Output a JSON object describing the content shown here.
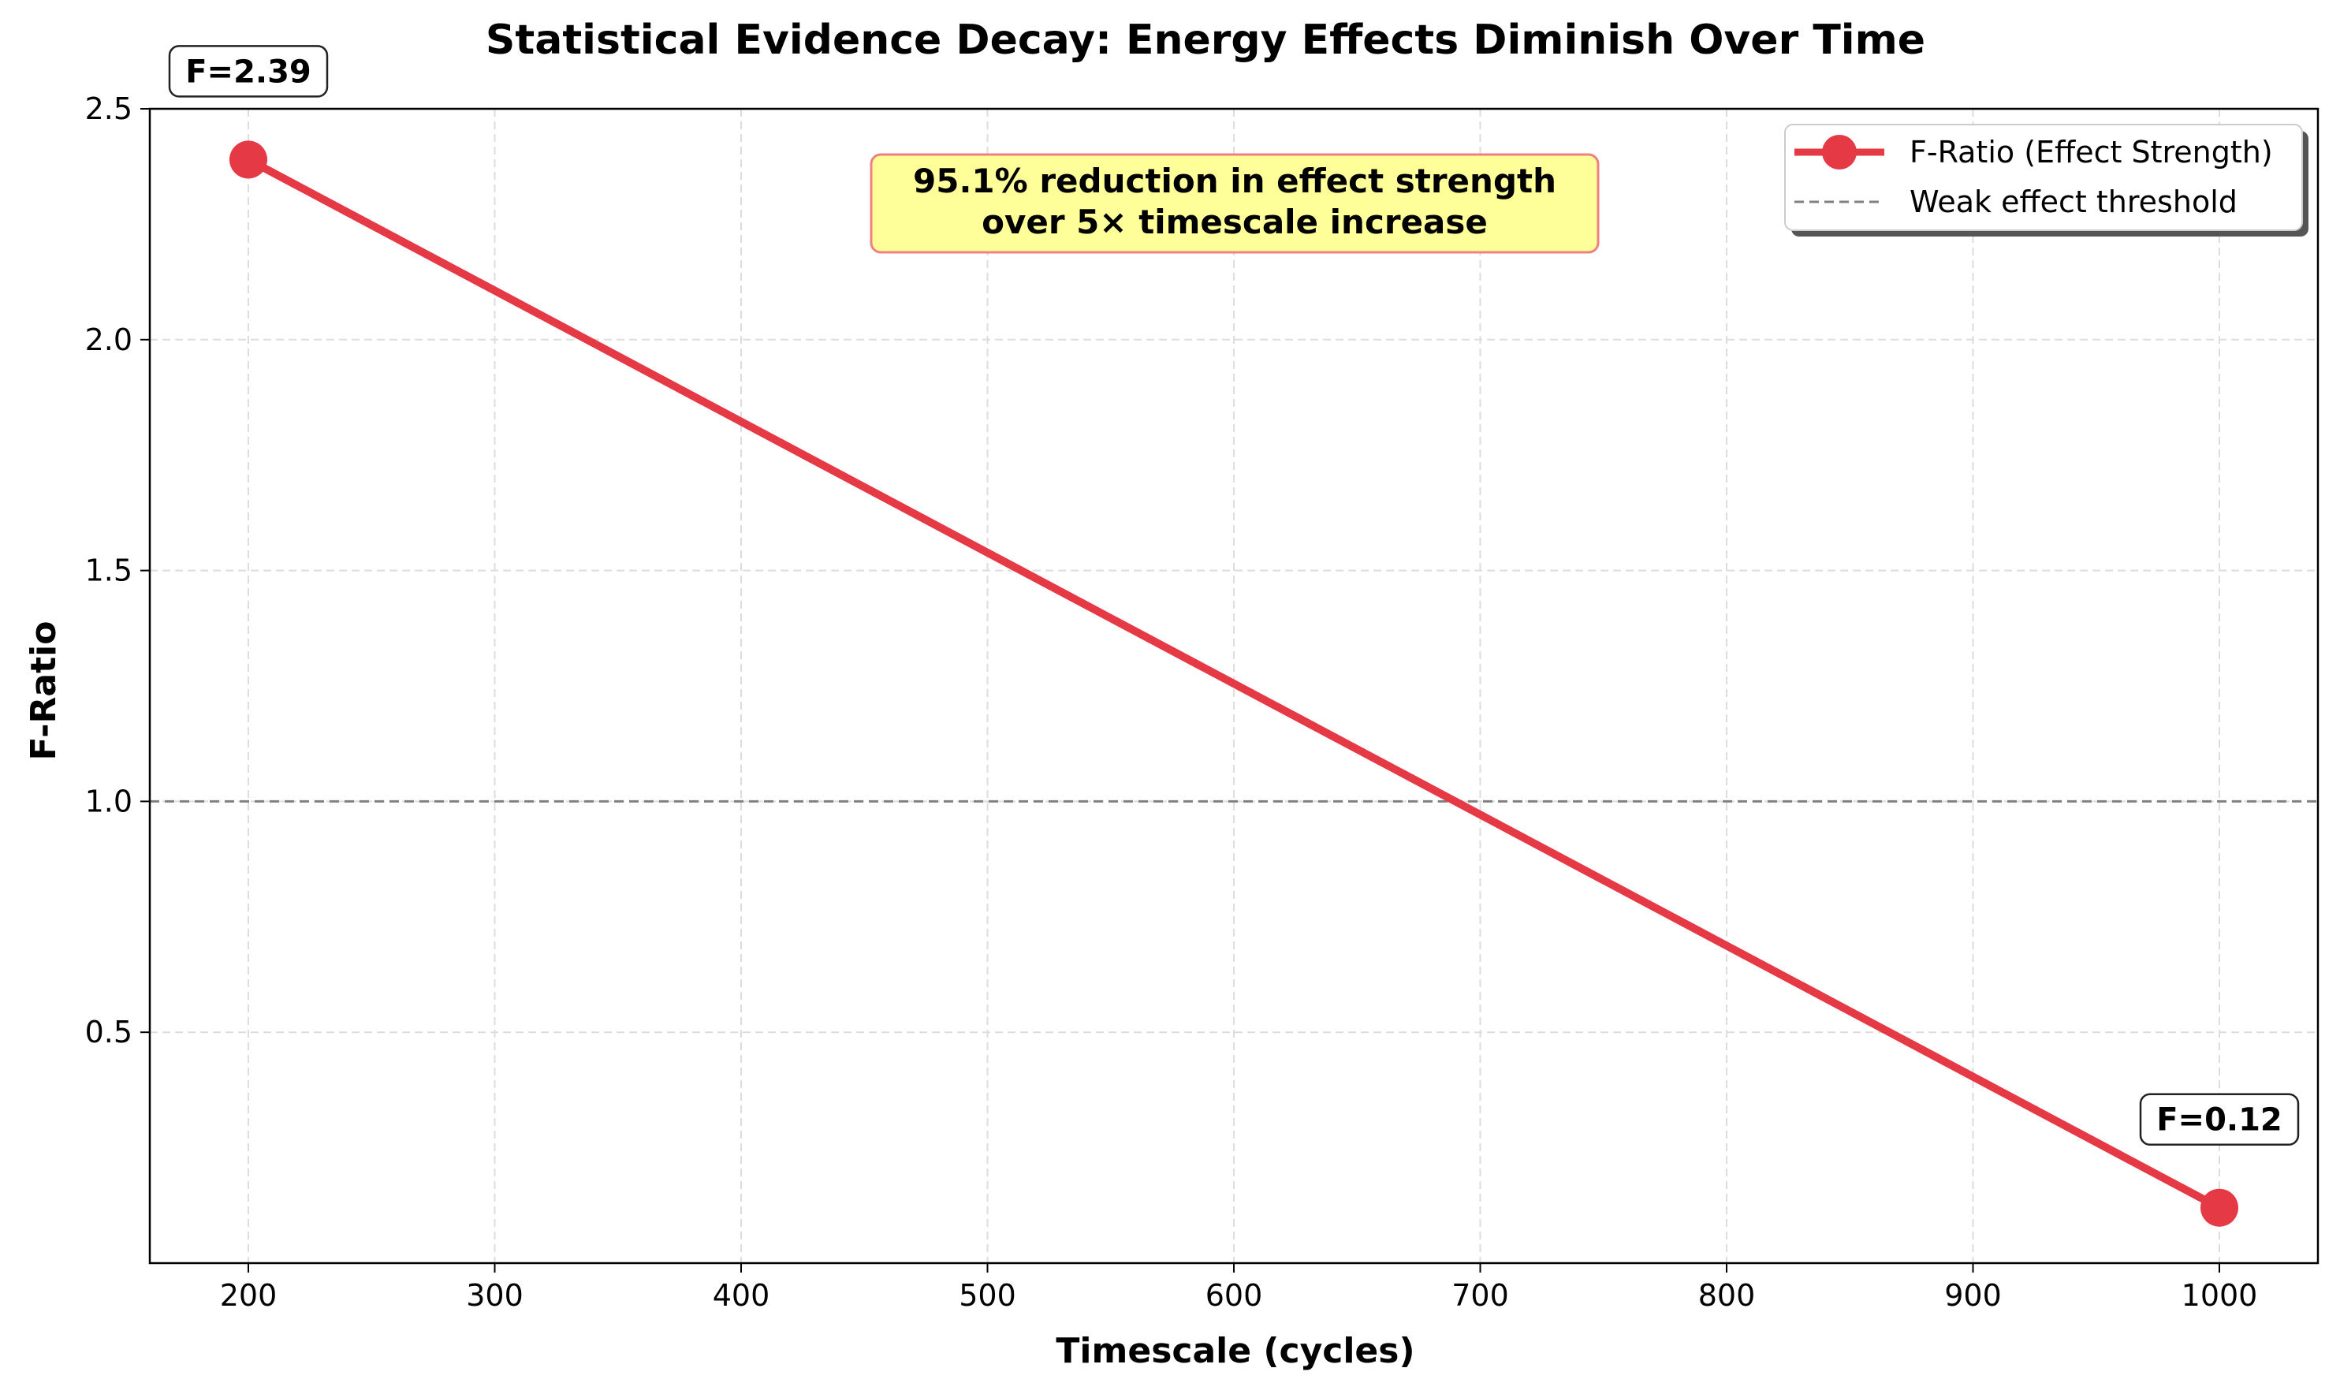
{
  "chart_data": {
    "type": "line",
    "title": "Statistical Evidence Decay: Energy Effects Diminish Over Time",
    "xlabel": "Timescale (cycles)",
    "ylabel": "F-Ratio",
    "xlim": [
      160,
      1040
    ],
    "ylim": [
      0.0,
      2.5
    ],
    "x_ticks": [
      200,
      300,
      400,
      500,
      600,
      700,
      800,
      900,
      1000
    ],
    "x_tick_labels": [
      "200",
      "300",
      "400",
      "500",
      "600",
      "700",
      "800",
      "900",
      "1000"
    ],
    "y_ticks": [
      0.5,
      1.0,
      1.5,
      2.0,
      2.5
    ],
    "y_tick_labels": [
      "0.5",
      "1.0",
      "1.5",
      "2.0",
      "2.5"
    ],
    "grid": true,
    "legend_position": "top-right",
    "series": [
      {
        "name": "F-Ratio (Effect Strength)",
        "x": [
          200,
          1000
        ],
        "y": [
          2.39,
          0.12
        ],
        "color": "#e63946"
      }
    ],
    "reference_lines": [
      {
        "name": "Weak effect threshold",
        "y": 1.0,
        "color": "#808080",
        "style": "dashed"
      }
    ],
    "point_labels": [
      {
        "x": 200,
        "y": 2.39,
        "text": "F=2.39"
      },
      {
        "x": 1000,
        "y": 0.12,
        "text": "F=0.12"
      }
    ],
    "annotation": {
      "lines": [
        "95.1% reduction in effect strength",
        "over 5× timescale increase"
      ],
      "background": "#ffff99",
      "border": "#f08080"
    }
  }
}
